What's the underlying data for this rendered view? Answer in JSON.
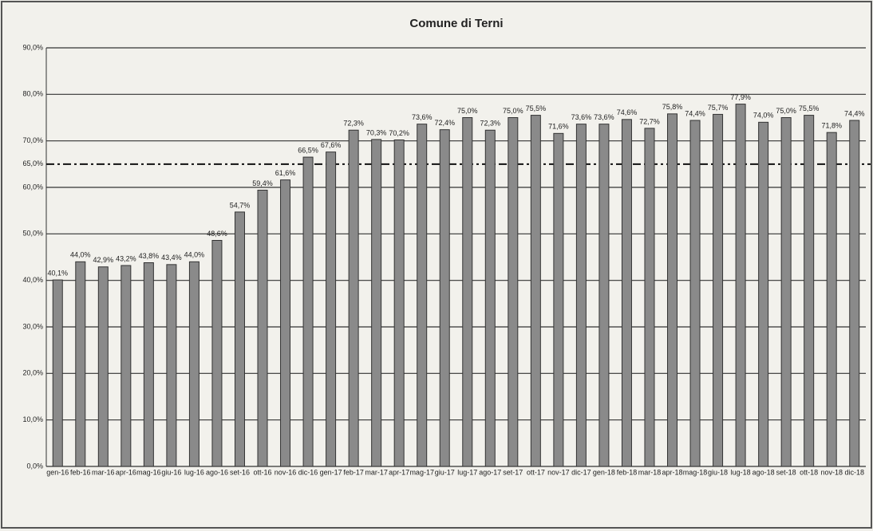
{
  "chart_data": {
    "type": "bar",
    "title": "Comune di Terni",
    "categories": [
      "gen-16",
      "feb-16",
      "mar-16",
      "apr-16",
      "mag-16",
      "giu-16",
      "lug-16",
      "ago-16",
      "set-16",
      "ott-16",
      "nov-16",
      "dic-16",
      "gen-17",
      "feb-17",
      "mar-17",
      "apr-17",
      "mag-17",
      "giu-17",
      "lug-17",
      "ago-17",
      "set-17",
      "ott-17",
      "nov-17",
      "dic-17",
      "gen-18",
      "feb-18",
      "mar-18",
      "apr-18",
      "mag-18",
      "giu-18",
      "lug-18",
      "ago-18",
      "set-18",
      "ott-18",
      "nov-18",
      "dic-18"
    ],
    "values": [
      40.1,
      44.0,
      42.9,
      43.2,
      43.8,
      43.4,
      44.0,
      48.6,
      54.7,
      59.4,
      61.6,
      66.5,
      67.6,
      72.3,
      70.3,
      70.2,
      73.6,
      72.4,
      75.0,
      72.3,
      75.0,
      75.5,
      71.6,
      73.6,
      73.6,
      74.6,
      72.7,
      75.8,
      74.4,
      75.7,
      77.9,
      74.0,
      75.0,
      75.5,
      71.8,
      74.4
    ],
    "value_labels": [
      "40,1%",
      "44,0%",
      "42,9%",
      "43,2%",
      "43,8%",
      "43,4%",
      "44,0%",
      "48,6%",
      "54,7%",
      "59,4%",
      "61,6%",
      "66,5%",
      "67,6%",
      "72,3%",
      "70,3%",
      "70,2%",
      "73,6%",
      "72,4%",
      "75,0%",
      "72,3%",
      "75,0%",
      "75,5%",
      "71,6%",
      "73,6%",
      "73,6%",
      "74,6%",
      "72,7%",
      "75,8%",
      "74,4%",
      "75,7%",
      "77,9%",
      "74,0%",
      "75,0%",
      "75,5%",
      "71,8%",
      "74,4%"
    ],
    "color": "#8a8a8a",
    "ylim": [
      0,
      90
    ],
    "yticks": [
      {
        "value": 0,
        "label": "0,0%"
      },
      {
        "value": 10,
        "label": "10,0%"
      },
      {
        "value": 20,
        "label": "20,0%"
      },
      {
        "value": 30,
        "label": "30,0%"
      },
      {
        "value": 40,
        "label": "40,0%"
      },
      {
        "value": 50,
        "label": "50,0%"
      },
      {
        "value": 60,
        "label": "60,0%"
      },
      {
        "value": 70,
        "label": "70,0%"
      },
      {
        "value": 80,
        "label": "80,0%"
      },
      {
        "value": 90,
        "label": "90,0%"
      }
    ],
    "reference_line": {
      "value": 65,
      "label": "65,0%"
    },
    "grid": true
  }
}
